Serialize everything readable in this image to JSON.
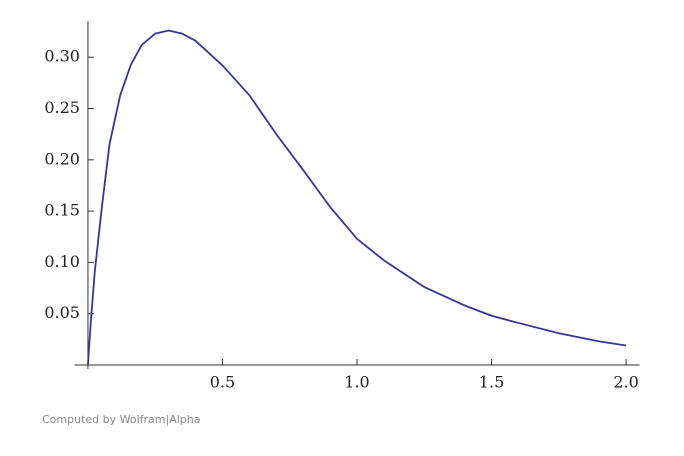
{
  "chart_data": {
    "type": "line",
    "x": [
      0,
      0.01,
      0.025,
      0.05,
      0.08,
      0.12,
      0.16,
      0.2,
      0.25,
      0.3,
      0.35,
      0.4,
      0.5,
      0.6,
      0.7,
      0.8,
      0.9,
      1.0,
      1.1,
      1.25,
      1.4,
      1.5,
      1.6,
      1.75,
      1.9,
      2.0
    ],
    "series": [
      {
        "color": "#36369a",
        "values": [
          0,
          0.04,
          0.09,
          0.15,
          0.215,
          0.263,
          0.293,
          0.312,
          0.323,
          0.326,
          0.323,
          0.316,
          0.292,
          0.263,
          0.225,
          0.19,
          0.154,
          0.123,
          0.102,
          0.076,
          0.058,
          0.048,
          0.041,
          0.031,
          0.023,
          0.019
        ]
      }
    ],
    "xlim": [
      -0.05,
      2.05
    ],
    "ylim": [
      0,
      0.335
    ],
    "xticks": [
      0.5,
      {
        "value": 1,
        "label": "1.0"
      },
      1.5,
      {
        "value": 2,
        "label": "2.0"
      }
    ],
    "yticks": [
      0.05,
      {
        "value": 0.1,
        "label": "0.10"
      },
      0.15,
      {
        "value": 0.2,
        "label": "0.20"
      },
      0.25,
      {
        "value": 0.3,
        "label": "0.30"
      }
    ],
    "footer": "Computed by Wolfram|Alpha"
  }
}
